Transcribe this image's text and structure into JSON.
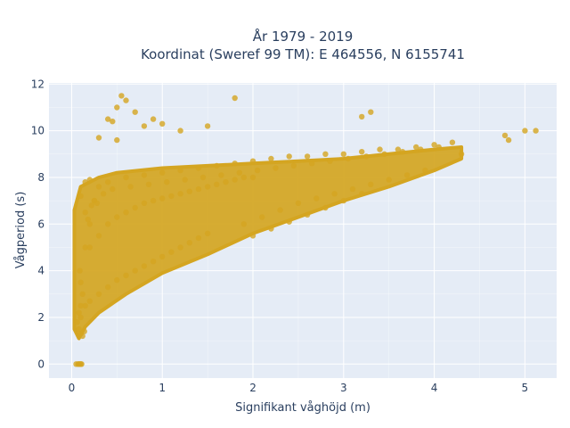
{
  "chart_data": {
    "type": "scatter",
    "title_line1": "År 1979 - 2019",
    "title_line2": "Koordinat (Sweref 99 TM): E 464556, N 6155741",
    "xlabel": "Signifikant våghöjd (m)",
    "ylabel": "Vågperiod (s)",
    "xlim": [
      -0.25,
      5.35
    ],
    "ylim": [
      -0.6,
      12.05
    ],
    "xticks": [
      0,
      1,
      2,
      3,
      4,
      5
    ],
    "yticks": [
      0,
      2,
      4,
      6,
      8,
      10,
      12
    ],
    "grid": true,
    "marker_color": "#D4A521",
    "background_color": "#E5ECF6",
    "series": [
      {
        "x": [
          0.05,
          0.07,
          0.08,
          0.09,
          0.1,
          0.11,
          0.08,
          0.06,
          0.08,
          0.1,
          0.12,
          0.1,
          0.09,
          0.15,
          0.2,
          0.25,
          0.3,
          0.15,
          0.2,
          0.1,
          0.1,
          0.15,
          0.2,
          0.3,
          0.4,
          0.5,
          0.6,
          0.7,
          0.8,
          0.9,
          1.0,
          1.1,
          1.2,
          1.3,
          1.4,
          1.5,
          0.2,
          0.3,
          0.4,
          0.5,
          0.6,
          0.7,
          0.8,
          0.9,
          1.0,
          1.1,
          1.2,
          1.3,
          1.4,
          1.5,
          1.6,
          1.7,
          1.8,
          1.9,
          2.0,
          0.4,
          0.6,
          0.8,
          1.0,
          1.2,
          1.4,
          1.6,
          1.8,
          2.0,
          2.2,
          2.4,
          2.6,
          2.8,
          3.0,
          3.2,
          3.4,
          3.6,
          3.8,
          4.0,
          4.2,
          4.3,
          0.3,
          0.4,
          0.5,
          0.55,
          0.6,
          0.7,
          0.8,
          0.45,
          0.5,
          0.9,
          1.0,
          1.2,
          1.5,
          1.8,
          3.2,
          3.3,
          4.78,
          4.82,
          5.0,
          5.12,
          0.15,
          0.25,
          0.35,
          0.22,
          0.18,
          0.28,
          0.45,
          0.65,
          0.85,
          1.05,
          1.25,
          1.45,
          1.65,
          1.85,
          2.05,
          2.25,
          2.45,
          2.65,
          2.85,
          3.05,
          3.25,
          3.45,
          3.65,
          3.85,
          4.05,
          1.9,
          2.1,
          2.3,
          2.5,
          2.7,
          2.9,
          3.1,
          3.3,
          3.5,
          3.7,
          3.9,
          2.0,
          2.2,
          2.4,
          2.6,
          2.8,
          3.0,
          3.2,
          0.1,
          0.12,
          0.14
        ],
        "y": [
          0,
          0,
          0,
          0,
          0,
          0,
          1.5,
          1.8,
          2.2,
          2.5,
          3.0,
          3.5,
          4.0,
          5.0,
          6.0,
          7.0,
          7.6,
          7.8,
          7.9,
          7.2,
          2.0,
          2.5,
          2.7,
          3.0,
          3.3,
          3.6,
          3.8,
          4.0,
          4.2,
          4.4,
          4.6,
          4.8,
          5.0,
          5.2,
          5.4,
          5.6,
          5.0,
          5.5,
          6.0,
          6.3,
          6.5,
          6.7,
          6.9,
          7.0,
          7.1,
          7.2,
          7.3,
          7.4,
          7.5,
          7.6,
          7.7,
          7.8,
          7.9,
          8.0,
          8.0,
          7.8,
          8.0,
          8.1,
          8.2,
          8.3,
          8.4,
          8.5,
          8.6,
          8.7,
          8.8,
          8.9,
          8.9,
          9.0,
          9.0,
          9.1,
          9.2,
          9.2,
          9.3,
          9.4,
          9.5,
          9.0,
          9.7,
          10.5,
          11.0,
          11.5,
          11.3,
          10.8,
          10.2,
          10.4,
          9.6,
          10.5,
          10.3,
          10.0,
          10.2,
          11.4,
          10.6,
          10.8,
          9.8,
          9.6,
          10.0,
          10.0,
          6.5,
          7.0,
          7.3,
          6.8,
          6.2,
          6.9,
          7.5,
          7.6,
          7.7,
          7.8,
          7.9,
          8.0,
          8.1,
          8.2,
          8.3,
          8.4,
          8.5,
          8.6,
          8.7,
          8.8,
          8.9,
          9.0,
          9.1,
          9.2,
          9.3,
          6.0,
          6.3,
          6.6,
          6.9,
          7.1,
          7.3,
          7.5,
          7.7,
          7.9,
          8.1,
          8.3,
          5.5,
          5.8,
          6.1,
          6.4,
          6.7,
          7.0,
          7.3,
          1.3,
          1.2,
          1.4
        ]
      }
    ]
  }
}
